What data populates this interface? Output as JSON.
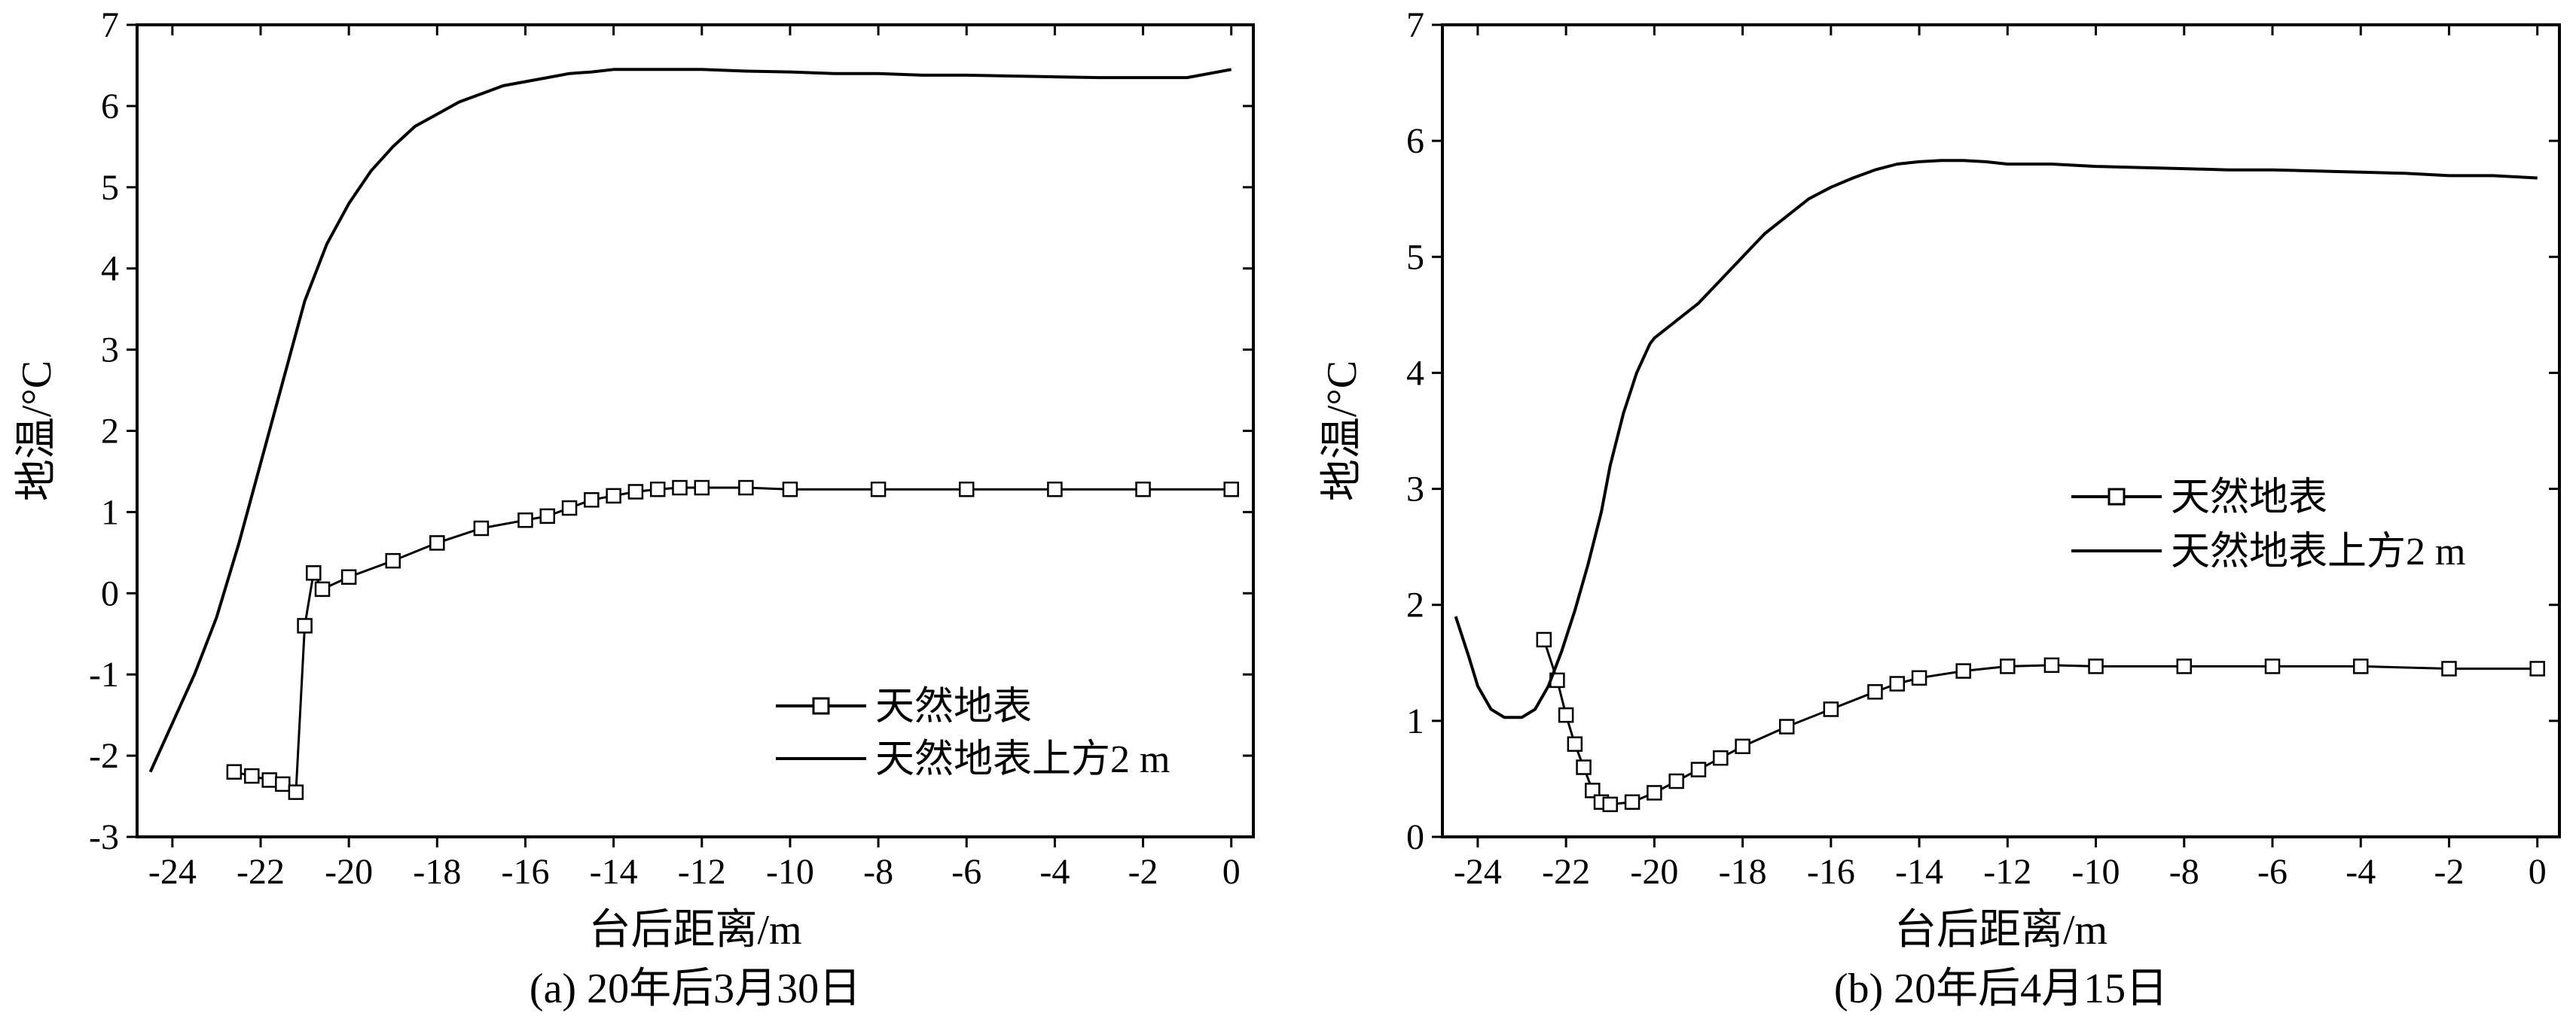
{
  "chart_data": [
    {
      "type": "line",
      "caption": "(a) 20年后3月30日",
      "xlabel": "台后距离/m",
      "ylabel": "地温/°C",
      "xlim": [
        -24.8,
        0.5
      ],
      "ylim": [
        -3,
        7
      ],
      "xticks": [
        -24,
        -22,
        -20,
        -18,
        -16,
        -14,
        -12,
        -10,
        -8,
        -6,
        -4,
        -2,
        0
      ],
      "yticks": [
        -3,
        -2,
        -1,
        0,
        1,
        2,
        3,
        4,
        5,
        6,
        7
      ],
      "legend_position": "bottom-right",
      "series": [
        {
          "name": "天然地表",
          "marker": "square",
          "x": [
            -22.6,
            -22.2,
            -21.8,
            -21.5,
            -21.2,
            -21.0,
            -20.8,
            -20.6,
            -20.0,
            -19.0,
            -18.0,
            -17.0,
            -16.0,
            -15.5,
            -15.0,
            -14.5,
            -14.0,
            -13.5,
            -13.0,
            -12.5,
            -12.0,
            -11.0,
            -10.0,
            -8.0,
            -6.0,
            -4.0,
            -2.0,
            0.0
          ],
          "y": [
            -2.2,
            -2.25,
            -2.3,
            -2.35,
            -2.45,
            -0.4,
            0.25,
            0.05,
            0.2,
            0.4,
            0.62,
            0.8,
            0.9,
            0.95,
            1.05,
            1.15,
            1.2,
            1.25,
            1.28,
            1.3,
            1.3,
            1.3,
            1.28,
            1.28,
            1.28,
            1.28,
            1.28,
            1.28
          ]
        },
        {
          "name": "天然地表上方2 m",
          "marker": "none",
          "x": [
            -24.5,
            -24.0,
            -23.5,
            -23.0,
            -22.5,
            -22.0,
            -21.5,
            -21.0,
            -20.5,
            -20.0,
            -19.5,
            -19.0,
            -18.5,
            -18.0,
            -17.5,
            -17.0,
            -16.5,
            -16.0,
            -15.5,
            -15.0,
            -14.5,
            -14.0,
            -13.5,
            -13.0,
            -12.0,
            -11.0,
            -10.0,
            -9.0,
            -8.0,
            -7.0,
            -6.0,
            -5.0,
            -4.0,
            -3.0,
            -2.0,
            -1.0,
            0.0
          ],
          "y": [
            -2.2,
            -1.6,
            -1.0,
            -0.3,
            0.6,
            1.6,
            2.6,
            3.6,
            4.3,
            4.8,
            5.2,
            5.5,
            5.75,
            5.9,
            6.05,
            6.15,
            6.25,
            6.3,
            6.35,
            6.4,
            6.42,
            6.45,
            6.45,
            6.45,
            6.45,
            6.43,
            6.42,
            6.4,
            6.4,
            6.38,
            6.38,
            6.37,
            6.36,
            6.35,
            6.35,
            6.35,
            6.45
          ]
        }
      ]
    },
    {
      "type": "line",
      "caption": "(b) 20年后4月15日",
      "xlabel": "台后距离/m",
      "ylabel": "地温/°C",
      "xlim": [
        -24.8,
        0.5
      ],
      "ylim": [
        0,
        7
      ],
      "xticks": [
        -24,
        -22,
        -20,
        -18,
        -16,
        -14,
        -12,
        -10,
        -8,
        -6,
        -4,
        -2,
        0
      ],
      "yticks": [
        0,
        1,
        2,
        3,
        4,
        5,
        6,
        7
      ],
      "legend_position": "center-right",
      "series": [
        {
          "name": "天然地表",
          "marker": "square",
          "x": [
            -22.5,
            -22.2,
            -22.0,
            -21.8,
            -21.6,
            -21.4,
            -21.2,
            -21.0,
            -20.5,
            -20.0,
            -19.5,
            -19.0,
            -18.5,
            -18.0,
            -17.0,
            -16.0,
            -15.0,
            -14.5,
            -14.0,
            -13.0,
            -12.0,
            -11.0,
            -10.0,
            -8.0,
            -6.0,
            -4.0,
            -2.0,
            0.0
          ],
          "y": [
            1.7,
            1.35,
            1.05,
            0.8,
            0.6,
            0.4,
            0.3,
            0.28,
            0.3,
            0.38,
            0.48,
            0.58,
            0.68,
            0.78,
            0.95,
            1.1,
            1.25,
            1.32,
            1.37,
            1.43,
            1.47,
            1.48,
            1.47,
            1.47,
            1.47,
            1.47,
            1.45,
            1.45
          ]
        },
        {
          "name": "天然地表上方2 m",
          "marker": "none",
          "x": [
            -24.5,
            -24.2,
            -24.0,
            -23.7,
            -23.4,
            -23.0,
            -22.7,
            -22.4,
            -22.1,
            -21.8,
            -21.5,
            -21.2,
            -21.0,
            -20.7,
            -20.4,
            -20.1,
            -20.0,
            -19.5,
            -19.0,
            -18.5,
            -18.0,
            -17.5,
            -17.0,
            -16.5,
            -16.0,
            -15.5,
            -15.0,
            -14.5,
            -14.0,
            -13.5,
            -13.0,
            -12.5,
            -12.0,
            -11.0,
            -10.0,
            -9.0,
            -8.0,
            -7.0,
            -6.0,
            -5.0,
            -4.0,
            -3.0,
            -2.0,
            -1.0,
            0.0
          ],
          "y": [
            1.9,
            1.55,
            1.3,
            1.1,
            1.03,
            1.03,
            1.1,
            1.3,
            1.6,
            1.95,
            2.35,
            2.8,
            3.2,
            3.65,
            4.0,
            4.25,
            4.3,
            4.45,
            4.6,
            4.8,
            5.0,
            5.2,
            5.35,
            5.5,
            5.6,
            5.68,
            5.75,
            5.8,
            5.82,
            5.83,
            5.83,
            5.82,
            5.8,
            5.8,
            5.78,
            5.77,
            5.76,
            5.75,
            5.75,
            5.74,
            5.73,
            5.72,
            5.7,
            5.7,
            5.68
          ]
        }
      ]
    }
  ]
}
